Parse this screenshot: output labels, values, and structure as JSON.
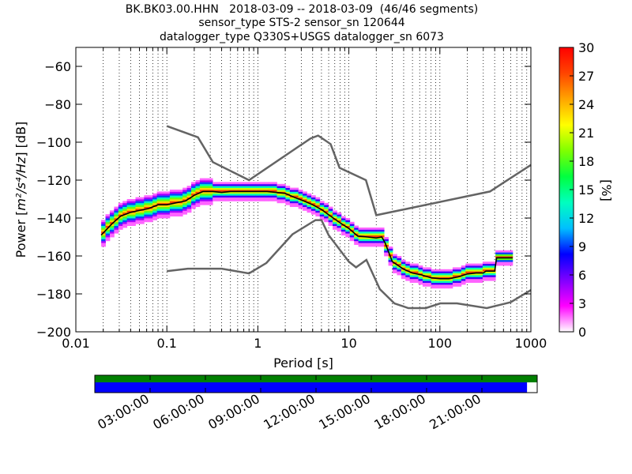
{
  "chart_data": [
    {
      "type": "heatmap",
      "title": [
        "BK.BK03.00.HHN   2018-03-09 -- 2018-03-09  (46/46 segments)",
        "sensor_type STS-2 sensor_sn 120644",
        "datalogger_type Q330S+USGS datalogger_sn 6073"
      ],
      "xlabel": "Period [s]",
      "ylabel_prefix": "Power [",
      "ylabel_unit": "m²/s⁴/Hz",
      "ylabel_suffix": "] [dB]",
      "x_scale": "log",
      "xlim": [
        0.01,
        1000
      ],
      "ylim": [
        -200,
        -50
      ],
      "x_ticks": [
        {
          "value": 0.01,
          "label": "0.01"
        },
        {
          "value": 0.1,
          "label": "0.1"
        },
        {
          "value": 1,
          "label": "1"
        },
        {
          "value": 10,
          "label": "10"
        },
        {
          "value": 100,
          "label": "100"
        },
        {
          "value": 1000,
          "label": "1000"
        }
      ],
      "y_ticks": [
        {
          "value": -60,
          "label": "−60"
        },
        {
          "value": -80,
          "label": "−80"
        },
        {
          "value": -100,
          "label": "−100"
        },
        {
          "value": -120,
          "label": "−120"
        },
        {
          "value": -140,
          "label": "−140"
        },
        {
          "value": -160,
          "label": "−160"
        },
        {
          "value": -180,
          "label": "−180"
        },
        {
          "value": -200,
          "label": "−200"
        }
      ],
      "grid": "dotted at each period decade subdivision",
      "nhnm": [
        [
          0.1,
          -91.5
        ],
        [
          0.22,
          -97.4
        ],
        [
          0.32,
          -110.5
        ],
        [
          0.8,
          -120
        ],
        [
          3.8,
          -98
        ],
        [
          4.6,
          -96.5
        ],
        [
          6.3,
          -101
        ],
        [
          7.9,
          -113.5
        ],
        [
          15.4,
          -120
        ],
        [
          20,
          -138.5
        ],
        [
          354.8,
          -126
        ],
        [
          1000,
          -112
        ]
      ],
      "nlnm": [
        [
          0.1,
          -168
        ],
        [
          0.17,
          -166.7
        ],
        [
          0.4,
          -166.7
        ],
        [
          0.8,
          -169.2
        ],
        [
          1.24,
          -163.7
        ],
        [
          2.4,
          -148.6
        ],
        [
          4.3,
          -141.1
        ],
        [
          5,
          -141.1
        ],
        [
          6,
          -149
        ],
        [
          10,
          -163
        ],
        [
          12,
          -166
        ],
        [
          15.6,
          -162.1
        ],
        [
          21.9,
          -177.5
        ],
        [
          31.6,
          -185
        ],
        [
          45,
          -187.5
        ],
        [
          70,
          -187.5
        ],
        [
          101,
          -185
        ],
        [
          154,
          -185
        ],
        [
          328,
          -187.5
        ],
        [
          600,
          -184.4
        ],
        [
          1000,
          -178
        ]
      ],
      "mode_line": [
        [
          0.019,
          -149
        ],
        [
          0.025,
          -143
        ],
        [
          0.031,
          -139
        ],
        [
          0.04,
          -137
        ],
        [
          0.05,
          -136
        ],
        [
          0.063,
          -135
        ],
        [
          0.08,
          -133
        ],
        [
          0.1,
          -133
        ],
        [
          0.125,
          -132
        ],
        [
          0.16,
          -131
        ],
        [
          0.2,
          -128
        ],
        [
          0.25,
          -126
        ],
        [
          0.32,
          -126
        ],
        [
          0.4,
          -126.5
        ],
        [
          0.5,
          -126
        ],
        [
          0.63,
          -126
        ],
        [
          0.8,
          -126
        ],
        [
          1,
          -126
        ],
        [
          1.26,
          -126
        ],
        [
          1.6,
          -126.5
        ],
        [
          2,
          -127
        ],
        [
          2.5,
          -129
        ],
        [
          3.2,
          -131
        ],
        [
          4,
          -133
        ],
        [
          5,
          -135.5
        ],
        [
          6.3,
          -139
        ],
        [
          8,
          -142.5
        ],
        [
          10,
          -145.5
        ],
        [
          12.5,
          -149.5
        ],
        [
          16,
          -150
        ],
        [
          20,
          -150.5
        ],
        [
          23,
          -150
        ],
        [
          25,
          -153
        ],
        [
          30,
          -163
        ],
        [
          40,
          -167
        ],
        [
          50,
          -169
        ],
        [
          63,
          -170
        ],
        [
          80,
          -171.5
        ],
        [
          100,
          -172
        ],
        [
          126,
          -172
        ],
        [
          160,
          -171
        ],
        [
          200,
          -169.5
        ],
        [
          250,
          -169
        ],
        [
          300,
          -169
        ],
        [
          320,
          -168
        ],
        [
          400,
          -168
        ],
        [
          420,
          -161
        ],
        [
          630,
          -161
        ]
      ],
      "colorbar": {
        "label": "[%]",
        "range": [
          0,
          30
        ],
        "ticks": [
          {
            "value": 0,
            "label": "0"
          },
          {
            "value": 3,
            "label": "3"
          },
          {
            "value": 6,
            "label": "6"
          },
          {
            "value": 9,
            "label": "9"
          },
          {
            "value": 12,
            "label": "12"
          },
          {
            "value": 15,
            "label": "15"
          },
          {
            "value": 18,
            "label": "18"
          },
          {
            "value": 21,
            "label": "21"
          },
          {
            "value": 24,
            "label": "24"
          },
          {
            "value": 27,
            "label": "27"
          },
          {
            "value": 30,
            "label": "30"
          }
        ],
        "colors": [
          "#ffffff",
          "#ff00ff",
          "#7f00ff",
          "#0000ff",
          "#00bfff",
          "#00ffbf",
          "#00ff40",
          "#7fff00",
          "#ffff00",
          "#ffa500",
          "#ff4500",
          "#ff0000"
        ]
      },
      "npeak_colors": {
        "nhnm": "#646464",
        "nlnm": "#646464",
        "mode": "#000000"
      }
    },
    {
      "type": "timeline",
      "coverage_bar_color": "#008000",
      "data_bar_color": "#0000ff",
      "data_fraction": 0.977,
      "time_ticks": [
        "03:00:00",
        "06:00:00",
        "09:00:00",
        "12:00:00",
        "15:00:00",
        "18:00:00",
        "21:00:00"
      ],
      "time_tick_hours": [
        3,
        6,
        9,
        12,
        15,
        18,
        21
      ],
      "total_hours": 24
    }
  ]
}
